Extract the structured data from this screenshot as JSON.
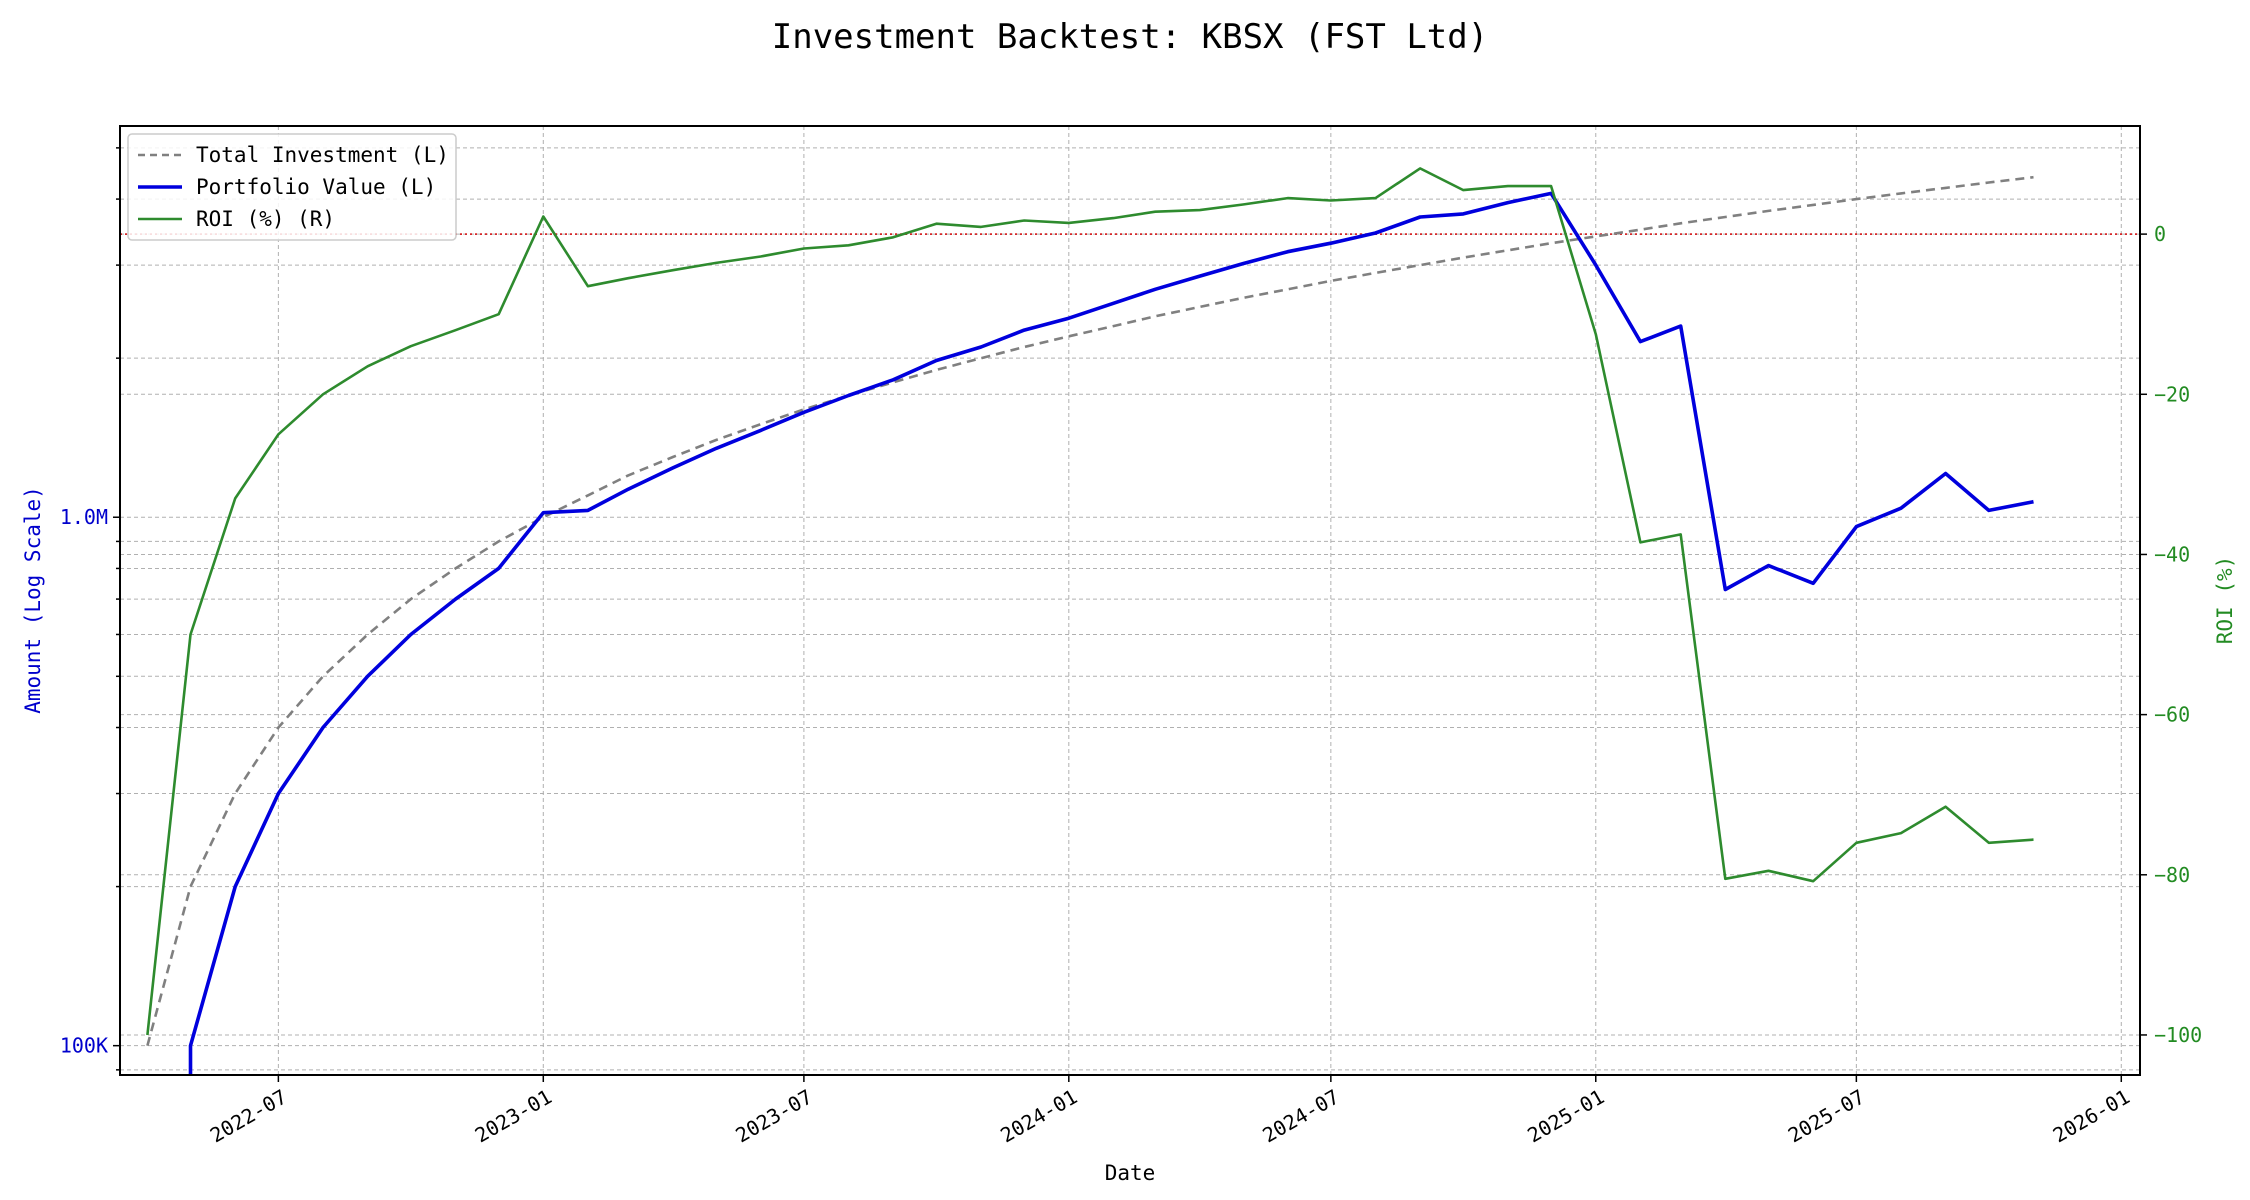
{
  "chart_data": {
    "type": "line",
    "title": "Investment Backtest: KBSX (FST Ltd)",
    "xlabel": "Date",
    "ylabel_left": "Amount (Log Scale)",
    "ylabel_right": "ROI (%)",
    "left_scale": "log",
    "left_ylim": [
      88000,
      5500000
    ],
    "right_ylim": [
      -105,
      13.5
    ],
    "xlim": [
      "2022-03-13",
      "2026-01-14"
    ],
    "grid": true,
    "legend_position": "top-left",
    "x_ticks": [
      "2022-07",
      "2023-01",
      "2023-07",
      "2024-01",
      "2024-07",
      "2025-01",
      "2025-07",
      "2026-01"
    ],
    "left_tick_labels": [
      {
        "value": 100000,
        "label": "100K"
      },
      {
        "value": 1000000,
        "label": "1.0M"
      }
    ],
    "right_ticks": [
      0,
      -20,
      -40,
      -60,
      -80,
      -100
    ],
    "reference_line": {
      "axis": "right",
      "value": 0,
      "color": "#d62728"
    },
    "colors": {
      "total_investment": "#808080",
      "portfolio_value": "#0000dd",
      "roi": "#2e8b2e",
      "left_axis": "#0000cc",
      "right_axis": "#228b22"
    },
    "dates": [
      "2022-04-01",
      "2022-05-01",
      "2022-06-01",
      "2022-07-01",
      "2022-08-01",
      "2022-09-01",
      "2022-10-01",
      "2022-11-01",
      "2022-12-01",
      "2023-01-01",
      "2023-02-01",
      "2023-03-01",
      "2023-04-01",
      "2023-05-01",
      "2023-06-01",
      "2023-07-01",
      "2023-08-01",
      "2023-09-01",
      "2023-10-01",
      "2023-11-01",
      "2023-12-01",
      "2024-01-01",
      "2024-02-01",
      "2024-03-01",
      "2024-04-01",
      "2024-05-01",
      "2024-06-01",
      "2024-07-01",
      "2024-08-01",
      "2024-09-01",
      "2024-10-01",
      "2024-11-01",
      "2024-12-01",
      "2025-01-01",
      "2025-02-01",
      "2025-03-01",
      "2025-04-01",
      "2025-05-01",
      "2025-06-01",
      "2025-07-01",
      "2025-08-01",
      "2025-09-01",
      "2025-10-01",
      "2025-11-01"
    ],
    "series": [
      {
        "name": "Total Investment (L)",
        "axis": "left",
        "style": "dashed",
        "values": [
          100000,
          200000,
          300000,
          400000,
          500000,
          600000,
          700000,
          800000,
          900000,
          1000000,
          1100000,
          1200000,
          1300000,
          1400000,
          1500000,
          1600000,
          1700000,
          1800000,
          1900000,
          2000000,
          2100000,
          2200000,
          2300000,
          2400000,
          2500000,
          2600000,
          2700000,
          2800000,
          2900000,
          3000000,
          3100000,
          3200000,
          3300000,
          3400000,
          3500000,
          3600000,
          3700000,
          3800000,
          3900000,
          4000000,
          4100000,
          4200000,
          4300000,
          4400000
        ]
      },
      {
        "name": "Portfolio Value (L)",
        "axis": "left",
        "style": "solid",
        "values": [
          null,
          100000,
          200000,
          300000,
          400000,
          500000,
          600000,
          700000,
          800000,
          1020000,
          1030000,
          1130000,
          1240000,
          1350000,
          1460000,
          1580000,
          1700000,
          1820000,
          1980000,
          2100000,
          2260000,
          2380000,
          2540000,
          2700000,
          2860000,
          3020000,
          3180000,
          3300000,
          3450000,
          3700000,
          3750000,
          3940000,
          4100000,
          3000000,
          2150000,
          2300000,
          730000,
          810000,
          750000,
          960000,
          1040000,
          1210000,
          1030000,
          1070000
        ]
      },
      {
        "name": "ROI (%) (R)",
        "axis": "right",
        "style": "solid",
        "values": [
          -100,
          -50,
          -33,
          -25,
          -20,
          -16.5,
          -14,
          -12,
          -10,
          2.2,
          -6.5,
          -5.5,
          -4.5,
          -3.6,
          -2.8,
          -1.8,
          -1.4,
          -0.4,
          1.3,
          0.9,
          1.7,
          1.4,
          2.0,
          2.8,
          3.0,
          3.7,
          4.5,
          4.2,
          4.5,
          8.2,
          5.5,
          6.0,
          6.0,
          -12.5,
          -38.5,
          -37.5,
          -80.5,
          -79.5,
          -80.8,
          -76,
          -74.8,
          -71.5,
          -76,
          -75.6
        ]
      }
    ]
  }
}
